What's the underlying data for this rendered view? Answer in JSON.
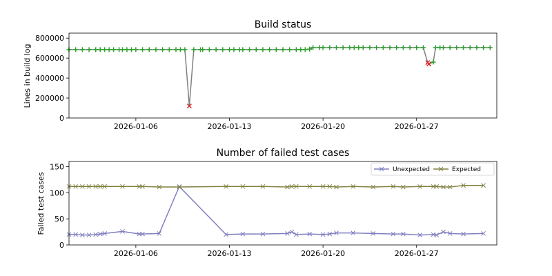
{
  "chart_data": [
    {
      "type": "line",
      "title": "Build status",
      "xlabel": "",
      "ylabel": "Lines in build log",
      "xlim": [
        "2026-01-01",
        "2026-02-02"
      ],
      "ylim": [
        0,
        850000
      ],
      "yticks": [
        0,
        200000,
        400000,
        600000,
        800000
      ],
      "ytick_labels": [
        "0",
        "200000",
        "400000",
        "600000",
        "800000"
      ],
      "xticks": [
        "2026-01-06",
        "2026-01-13",
        "2026-01-20",
        "2026-01-27"
      ],
      "xtick_labels": [
        "2026-01-06",
        "2026-01-13",
        "2026-01-20",
        "2026-01-27"
      ],
      "colors": {
        "line": "#808080",
        "success": "#2ca02c",
        "failure": "#d62728"
      },
      "series": [
        {
          "points": [
            [
              "2026-01-01",
              685000,
              "ok"
            ],
            [
              "2026-01-01T12:00",
              685000,
              "ok"
            ],
            [
              "2026-01-02",
              685000,
              "ok"
            ],
            [
              "2026-01-02T12:00",
              685000,
              "ok"
            ],
            [
              "2026-01-03",
              685000,
              "ok"
            ],
            [
              "2026-01-03T08:00",
              685000,
              "ok"
            ],
            [
              "2026-01-03T16:00",
              685000,
              "ok"
            ],
            [
              "2026-01-04",
              685000,
              "ok"
            ],
            [
              "2026-01-04T08:00",
              685000,
              "ok"
            ],
            [
              "2026-01-04T18:00",
              685000,
              "ok"
            ],
            [
              "2026-01-05",
              685000,
              "ok"
            ],
            [
              "2026-01-05T08:00",
              685000,
              "ok"
            ],
            [
              "2026-01-05T16:00",
              685000,
              "ok"
            ],
            [
              "2026-01-06",
              685000,
              "ok"
            ],
            [
              "2026-01-06T12:00",
              685000,
              "ok"
            ],
            [
              "2026-01-07",
              685000,
              "ok"
            ],
            [
              "2026-01-07T12:00",
              685000,
              "ok"
            ],
            [
              "2026-01-08",
              685000,
              "ok"
            ],
            [
              "2026-01-08T12:00",
              685000,
              "ok"
            ],
            [
              "2026-01-09",
              685000,
              "ok"
            ],
            [
              "2026-01-09T08:00",
              685000,
              "ok"
            ],
            [
              "2026-01-09T16:00",
              685000,
              "ok"
            ],
            [
              "2026-01-10",
              120000,
              "fail"
            ],
            [
              "2026-01-10T08:00",
              685000,
              "ok"
            ],
            [
              "2026-01-10T20:00",
              685000,
              "ok"
            ],
            [
              "2026-01-11",
              685000,
              "ok"
            ],
            [
              "2026-01-11T12:00",
              685000,
              "ok"
            ],
            [
              "2026-01-12",
              685000,
              "ok"
            ],
            [
              "2026-01-12T12:00",
              685000,
              "ok"
            ],
            [
              "2026-01-13",
              685000,
              "ok"
            ],
            [
              "2026-01-13T08:00",
              685000,
              "ok"
            ],
            [
              "2026-01-13T18:00",
              685000,
              "ok"
            ],
            [
              "2026-01-14",
              685000,
              "ok"
            ],
            [
              "2026-01-14T12:00",
              685000,
              "ok"
            ],
            [
              "2026-01-15",
              685000,
              "ok"
            ],
            [
              "2026-01-15T12:00",
              685000,
              "ok"
            ],
            [
              "2026-01-16",
              685000,
              "ok"
            ],
            [
              "2026-01-16T12:00",
              685000,
              "ok"
            ],
            [
              "2026-01-17",
              685000,
              "ok"
            ],
            [
              "2026-01-17T12:00",
              685000,
              "ok"
            ],
            [
              "2026-01-18",
              685000,
              "ok"
            ],
            [
              "2026-01-18T08:00",
              685000,
              "ok"
            ],
            [
              "2026-01-18T16:00",
              685000,
              "ok"
            ],
            [
              "2026-01-19",
              690000,
              "ok"
            ],
            [
              "2026-01-19T06:00",
              705000,
              "ok"
            ],
            [
              "2026-01-19T18:00",
              705000,
              "ok"
            ],
            [
              "2026-01-20",
              705000,
              "ok"
            ],
            [
              "2026-01-20T12:00",
              705000,
              "ok"
            ],
            [
              "2026-01-21",
              705000,
              "ok"
            ],
            [
              "2026-01-21T12:00",
              705000,
              "ok"
            ],
            [
              "2026-01-22",
              705000,
              "ok"
            ],
            [
              "2026-01-22T08:00",
              705000,
              "ok"
            ],
            [
              "2026-01-22T16:00",
              705000,
              "ok"
            ],
            [
              "2026-01-23",
              705000,
              "ok"
            ],
            [
              "2026-01-23T12:00",
              705000,
              "ok"
            ],
            [
              "2026-01-24",
              705000,
              "ok"
            ],
            [
              "2026-01-24T12:00",
              705000,
              "ok"
            ],
            [
              "2026-01-25",
              705000,
              "ok"
            ],
            [
              "2026-01-25T12:00",
              705000,
              "ok"
            ],
            [
              "2026-01-26",
              705000,
              "ok"
            ],
            [
              "2026-01-26T12:00",
              705000,
              "ok"
            ],
            [
              "2026-01-27",
              705000,
              "ok"
            ],
            [
              "2026-01-27T12:00",
              705000,
              "ok"
            ],
            [
              "2026-01-27T20:00",
              555000,
              "fail"
            ],
            [
              "2026-01-27T22:00",
              540000,
              "fail"
            ],
            [
              "2026-01-28T06:00",
              560000,
              "ok"
            ],
            [
              "2026-01-28T10:00",
              705000,
              "ok"
            ],
            [
              "2026-01-28T18:00",
              705000,
              "ok"
            ],
            [
              "2026-01-29",
              705000,
              "ok"
            ],
            [
              "2026-01-29T12:00",
              705000,
              "ok"
            ],
            [
              "2026-01-30",
              705000,
              "ok"
            ],
            [
              "2026-01-30T12:00",
              705000,
              "ok"
            ],
            [
              "2026-01-31",
              705000,
              "ok"
            ],
            [
              "2026-01-31T12:00",
              705000,
              "ok"
            ],
            [
              "2026-02-01",
              705000,
              "ok"
            ],
            [
              "2026-02-01T12:00",
              705000,
              "ok"
            ]
          ]
        }
      ]
    },
    {
      "type": "line",
      "title": "Number of failed test cases",
      "xlabel": "",
      "ylabel": "Failed test cases",
      "xlim": [
        "2026-01-01",
        "2026-02-02"
      ],
      "ylim": [
        0,
        160
      ],
      "yticks": [
        0,
        50,
        100,
        150
      ],
      "ytick_labels": [
        "0",
        "50",
        "100",
        "150"
      ],
      "xticks": [
        "2026-01-06",
        "2026-01-13",
        "2026-01-20",
        "2026-01-27"
      ],
      "xtick_labels": [
        "2026-01-06",
        "2026-01-13",
        "2026-01-20",
        "2026-01-27"
      ],
      "legend_position": "top-right",
      "series": [
        {
          "name": "Unexpected",
          "color": "#7f7fbf",
          "x": [
            "2026-01-01",
            "2026-01-01T12:00",
            "2026-01-02",
            "2026-01-02T12:00",
            "2026-01-03",
            "2026-01-03T08:00",
            "2026-01-03T16:00",
            "2026-01-05",
            "2026-01-06T06:00",
            "2026-01-06T12:00",
            "2026-01-07T18:00",
            "2026-01-09T06:00",
            "2026-01-12T18:00",
            "2026-01-14",
            "2026-01-15T12:00",
            "2026-01-17T08:00",
            "2026-01-17T16:00",
            "2026-01-18",
            "2026-01-19",
            "2026-01-20",
            "2026-01-20T12:00",
            "2026-01-21",
            "2026-01-22T06:00",
            "2026-01-23T18:00",
            "2026-01-25T06:00",
            "2026-01-26",
            "2026-01-27T06:00",
            "2026-01-28T06:00",
            "2026-01-28T12:00",
            "2026-01-29",
            "2026-01-29T12:00",
            "2026-01-30T12:00",
            "2026-02-01"
          ],
          "values": [
            20,
            20,
            19,
            19,
            20,
            21,
            22,
            26,
            21,
            21,
            22,
            112,
            20,
            21,
            21,
            22,
            25,
            20,
            21,
            20,
            21,
            23,
            23,
            22,
            21,
            21,
            19,
            20,
            19,
            25,
            22,
            21,
            22
          ]
        },
        {
          "name": "Expected",
          "color": "#808040",
          "x": [
            "2026-01-01",
            "2026-01-01T12:00",
            "2026-01-02",
            "2026-01-02T12:00",
            "2026-01-03",
            "2026-01-03T08:00",
            "2026-01-03T16:00",
            "2026-01-05",
            "2026-01-06T06:00",
            "2026-01-06T12:00",
            "2026-01-07T18:00",
            "2026-01-09T06:00",
            "2026-01-12T18:00",
            "2026-01-14",
            "2026-01-15T12:00",
            "2026-01-17T08:00",
            "2026-01-17T16:00",
            "2026-01-18",
            "2026-01-19",
            "2026-01-20",
            "2026-01-20T12:00",
            "2026-01-21",
            "2026-01-22T06:00",
            "2026-01-23T18:00",
            "2026-01-25T06:00",
            "2026-01-26",
            "2026-01-27T06:00",
            "2026-01-28T06:00",
            "2026-01-28T12:00",
            "2026-01-29",
            "2026-01-29T12:00",
            "2026-01-30T12:00",
            "2026-02-01"
          ],
          "values": [
            112,
            112,
            112,
            112,
            112,
            112,
            112,
            112,
            112,
            112,
            111,
            111,
            112,
            112,
            112,
            111,
            112,
            112,
            112,
            112,
            112,
            111,
            112,
            111,
            112,
            111,
            112,
            112,
            112,
            111,
            111,
            114,
            114
          ]
        }
      ]
    }
  ]
}
